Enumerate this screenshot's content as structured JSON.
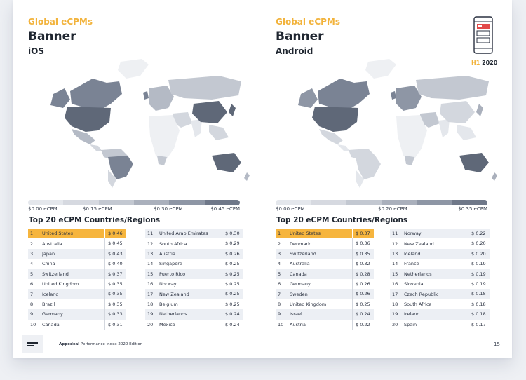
{
  "left": {
    "kicker": "Global eCPMs",
    "title": "Banner",
    "platform": "iOS",
    "scale_labels": [
      "$0.00 eCPM",
      "$0.15 eCPM",
      "$0.30 eCPM",
      "$0.45 eCPM"
    ],
    "list_title": "Top 20 eCPM Countries/Regions",
    "col1": [
      {
        "rank": "1",
        "country": "United States",
        "value": "$ 0.46"
      },
      {
        "rank": "2",
        "country": "Australia",
        "value": "$ 0.45"
      },
      {
        "rank": "3",
        "country": "Japan",
        "value": "$ 0.43"
      },
      {
        "rank": "4",
        "country": "China",
        "value": "$ 0.40"
      },
      {
        "rank": "5",
        "country": "Switzerland",
        "value": "$ 0.37"
      },
      {
        "rank": "6",
        "country": "United Kingdom",
        "value": "$ 0.35"
      },
      {
        "rank": "7",
        "country": "Iceland",
        "value": "$ 0.35"
      },
      {
        "rank": "8",
        "country": "Brazil",
        "value": "$ 0.35"
      },
      {
        "rank": "9",
        "country": "Germany",
        "value": "$ 0.33"
      },
      {
        "rank": "10",
        "country": "Canada",
        "value": "$ 0.31"
      }
    ],
    "col2": [
      {
        "rank": "11",
        "country": "United Arab Emirates",
        "value": "$ 0.30"
      },
      {
        "rank": "12",
        "country": "South Africa",
        "value": "$ 0.29"
      },
      {
        "rank": "13",
        "country": "Austria",
        "value": "$ 0.26"
      },
      {
        "rank": "14",
        "country": "Singapore",
        "value": "$ 0.25"
      },
      {
        "rank": "15",
        "country": "Puerto Rico",
        "value": "$ 0.25"
      },
      {
        "rank": "16",
        "country": "Norway",
        "value": "$ 0.25"
      },
      {
        "rank": "17",
        "country": "New Zealand",
        "value": "$ 0.25"
      },
      {
        "rank": "18",
        "country": "Belgium",
        "value": "$ 0.25"
      },
      {
        "rank": "19",
        "country": "Netherlands",
        "value": "$ 0.24"
      },
      {
        "rank": "20",
        "country": "Mexico",
        "value": "$ 0.24"
      }
    ]
  },
  "right": {
    "kicker": "Global eCPMs",
    "title": "Banner",
    "platform": "Android",
    "scale_labels": [
      "$0.00 eCPM",
      "$0.20 eCPM",
      "$0.35 eCPM"
    ],
    "list_title": "Top 20 eCPM Countries/Regions",
    "col1": [
      {
        "rank": "1",
        "country": "United States",
        "value": "$ 0.37"
      },
      {
        "rank": "2",
        "country": "Denmark",
        "value": "$ 0.36"
      },
      {
        "rank": "3",
        "country": "Switzerland",
        "value": "$ 0.35"
      },
      {
        "rank": "4",
        "country": "Australia",
        "value": "$ 0.32"
      },
      {
        "rank": "5",
        "country": "Canada",
        "value": "$ 0.28"
      },
      {
        "rank": "6",
        "country": "Germany",
        "value": "$ 0.26"
      },
      {
        "rank": "7",
        "country": "Sweden",
        "value": "$ 0.26"
      },
      {
        "rank": "8",
        "country": "United Kingdom",
        "value": "$ 0.25"
      },
      {
        "rank": "9",
        "country": "Israel",
        "value": "$ 0.24"
      },
      {
        "rank": "10",
        "country": "Austria",
        "value": "$ 0.22"
      }
    ],
    "col2": [
      {
        "rank": "11",
        "country": "Norway",
        "value": "$ 0.22"
      },
      {
        "rank": "12",
        "country": "New Zealand",
        "value": "$ 0.20"
      },
      {
        "rank": "13",
        "country": "Iceland",
        "value": "$ 0.20"
      },
      {
        "rank": "14",
        "country": "France",
        "value": "$ 0.19"
      },
      {
        "rank": "15",
        "country": "Netherlands",
        "value": "$ 0.19"
      },
      {
        "rank": "16",
        "country": "Slovenia",
        "value": "$ 0.19"
      },
      {
        "rank": "17",
        "country": "Czech Republic",
        "value": "$ 0.18"
      },
      {
        "rank": "18",
        "country": "South Africa",
        "value": "$ 0.18"
      },
      {
        "rank": "19",
        "country": "Ireland",
        "value": "$ 0.18"
      },
      {
        "rank": "20",
        "country": "Spain",
        "value": "$ 0.17"
      }
    ]
  },
  "badge": {
    "prefix": "H1",
    "year": "2020"
  },
  "footer": {
    "brand": "Appodeal",
    "edition": "Performance Index 2020 Edition",
    "page": "15"
  },
  "colors": {
    "accent": "#f2b33c",
    "highlight_row": "#f6b53e",
    "scale": [
      "#e4e7ec",
      "#d6d9e0",
      "#c3c8d1",
      "#aab0bc",
      "#8e96a5",
      "#6f7889"
    ]
  }
}
